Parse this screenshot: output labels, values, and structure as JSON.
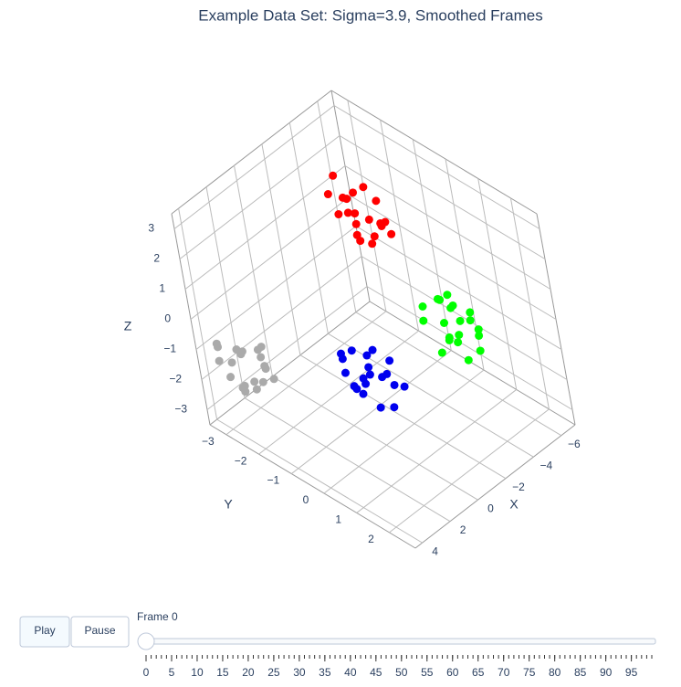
{
  "chart_data": {
    "type": "scatter3d",
    "title": "Example Data Set: Sigma=3.9, Smoothed Frames",
    "xlabel": "X",
    "ylabel": "Y",
    "zlabel": "Z",
    "xlim": [
      -7,
      4.5
    ],
    "ylim": [
      -3.5,
      2.8
    ],
    "zlim": [
      -3.5,
      3.5
    ],
    "xticks": [
      {
        "value": -6,
        "label": "−6"
      },
      {
        "value": -4,
        "label": "−4"
      },
      {
        "value": -2,
        "label": "−2"
      },
      0,
      2,
      4
    ],
    "yticks": [
      {
        "value": -3,
        "label": "−3"
      },
      {
        "value": -2,
        "label": "−2"
      },
      {
        "value": -1,
        "label": "−1"
      },
      0,
      1,
      2
    ],
    "zticks": [
      {
        "value": -3,
        "label": "−3"
      },
      {
        "value": -2,
        "label": "−2"
      },
      {
        "value": -1,
        "label": "−1"
      },
      0,
      1,
      2,
      3
    ],
    "grid": true,
    "series": [
      {
        "color": "#ff0000",
        "x": [
          -2.5,
          -3.3,
          -2.7,
          -3.0,
          -2.2,
          -3.5,
          -2.4,
          -3.1,
          -2.8,
          -2.0,
          -2.9,
          -2.6,
          -3.4,
          -2.3,
          -3.2,
          -2.7,
          -1.9,
          -3.6,
          -2.5,
          -3.0
        ],
        "y": [
          -1.2,
          -0.6,
          -0.3,
          -1.6,
          -0.9,
          -1.1,
          -0.5,
          -0.8,
          -1.4,
          -1.3,
          -0.1,
          -1.0,
          -1.5,
          -1.7,
          -0.4,
          -1.1,
          -0.7,
          -0.8,
          -0.6,
          -1.8
        ],
        "z": [
          3.0,
          2.2,
          2.7,
          2.6,
          2.1,
          3.1,
          2.8,
          1.8,
          2.3,
          2.6,
          2.4,
          3.3,
          2.0,
          2.9,
          2.5,
          1.6,
          2.7,
          2.8,
          1.9,
          3.2
        ]
      },
      {
        "color": "#00ff00",
        "x": [
          -4.4,
          -5.2,
          -4.7,
          -4.8,
          -5.3,
          -4.3,
          -4.6,
          -5.6,
          -5.1,
          -4.8,
          -5.0,
          -4.1,
          -5.4,
          -4.5,
          -4.9,
          -5.8,
          -4.7,
          -4.6,
          -5.5,
          -4.2
        ],
        "y": [
          0.7,
          -0.1,
          0.5,
          0.2,
          1.0,
          -0.3,
          0.8,
          0.1,
          0.4,
          1.2,
          0.3,
          0.6,
          -0.2,
          0.9,
          0.0,
          0.5,
          1.3,
          -0.4,
          0.7,
          0.2
        ],
        "z": [
          -1.2,
          -0.6,
          -0.3,
          -1.6,
          -0.9,
          -1.1,
          -0.5,
          -0.8,
          -1.4,
          -1.3,
          -0.1,
          -1.0,
          -1.5,
          -1.7,
          -0.4,
          -1.1,
          -0.7,
          -0.8,
          -0.6,
          -1.8
        ]
      },
      {
        "color": "#0000ee",
        "x": [
          -1.2,
          -0.6,
          -0.3,
          -1.6,
          -0.9,
          -1.1,
          -0.5,
          -0.8,
          -1.4,
          -1.3,
          -0.1,
          -1.0,
          -1.5,
          -1.7,
          -0.4,
          -1.1,
          -0.7,
          -0.8,
          -0.6,
          -1.8
        ],
        "y": [
          -0.2,
          -1.0,
          -0.5,
          -0.6,
          -1.1,
          -0.1,
          -0.4,
          -1.4,
          -0.9,
          -0.6,
          -0.8,
          0.1,
          -1.2,
          -0.3,
          -0.7,
          -1.6,
          -0.5,
          -0.4,
          -1.3,
          0.0
        ],
        "z": [
          -1.7,
          -2.5,
          -1.9,
          -2.2,
          -1.4,
          -2.7,
          -1.6,
          -2.3,
          -2.0,
          -1.2,
          -2.1,
          -1.8,
          -2.6,
          -1.5,
          -2.4,
          -1.9,
          -1.1,
          -2.8,
          -1.7,
          -2.2
        ]
      },
      {
        "color": "#aaaaaa",
        "x": [
          3.5,
          4.3,
          3.7,
          4.0,
          3.2,
          4.5,
          3.4,
          4.1,
          3.8,
          3.0,
          3.9,
          3.6,
          4.4,
          3.3,
          4.2,
          3.7,
          2.9,
          4.6,
          3.5,
          4.0
        ],
        "y": [
          -1.8,
          -2.6,
          -2.1,
          -2.2,
          -2.7,
          -1.7,
          -2.0,
          -3.0,
          -2.5,
          -2.2,
          -2.4,
          -1.5,
          -2.8,
          -1.9,
          -2.3,
          -3.2,
          -2.1,
          -2.0,
          -2.9,
          -1.6
        ],
        "z": [
          -0.8,
          -1.4,
          -1.7,
          -0.4,
          -1.1,
          -0.9,
          -1.5,
          -1.2,
          -0.6,
          -0.7,
          -1.9,
          -1.0,
          -0.5,
          -0.3,
          -1.6,
          -0.9,
          -1.3,
          -1.2,
          -1.4,
          -0.2
        ]
      }
    ],
    "buttons": [
      "Play",
      "Pause"
    ],
    "slider": {
      "current_label": "Frame 0",
      "value": 0,
      "min": 0,
      "max": 99,
      "ticks": [
        0,
        5,
        10,
        15,
        20,
        25,
        30,
        35,
        40,
        45,
        50,
        55,
        60,
        65,
        70,
        75,
        80,
        85,
        90,
        95
      ],
      "steps": [
        0,
        1,
        2,
        3,
        4,
        5,
        6,
        7,
        8,
        9,
        10,
        11,
        12,
        13,
        14,
        15,
        16,
        17,
        18,
        19,
        20,
        21,
        22,
        23,
        24,
        25,
        26,
        27,
        28,
        29,
        30,
        31,
        32,
        33,
        34,
        35,
        36,
        37,
        38,
        39,
        40,
        41,
        42,
        43,
        44,
        45,
        46,
        47,
        48,
        49,
        50,
        51,
        52,
        53,
        54,
        55,
        56,
        57,
        58,
        59,
        60,
        61,
        62,
        63,
        64,
        65,
        66,
        67,
        68,
        69,
        70,
        71,
        72,
        73,
        74,
        75,
        76,
        77,
        78,
        79,
        80,
        81,
        82,
        83,
        84,
        85,
        86,
        87,
        88,
        89,
        90,
        91,
        92,
        93,
        94,
        95,
        96,
        97,
        98,
        99
      ]
    }
  }
}
